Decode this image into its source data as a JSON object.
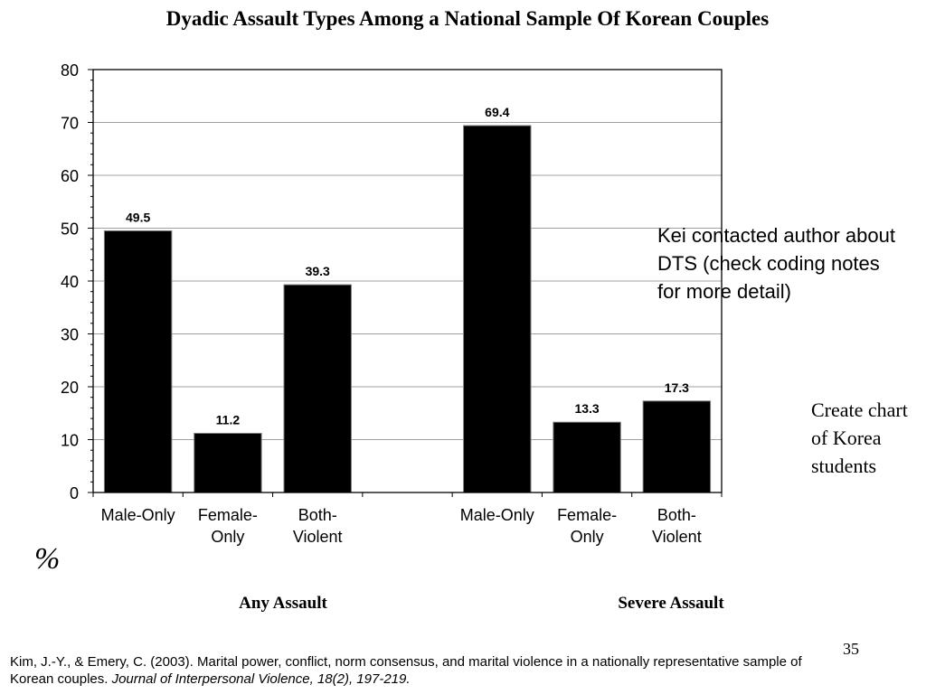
{
  "slide": {
    "annotation": "Kei contacted author about DTS (check coding notes for more detail)",
    "side_note": "Create chart of Korea students",
    "percent_symbol": "%",
    "page_number": "35",
    "citation_text": "Kim, J.-Y., & Emery, C. (2003). Marital power, conflict, norm consensus, and marital violence in a nationally representative sample of Korean couples.",
    "citation_journal": "Journal of Interpersonal Violence, 18(2), 197-219."
  },
  "chart_data": {
    "type": "bar",
    "title": "Dyadic Assault Types Among a National Sample Of Korean Couples",
    "groups": [
      "Any Assault",
      "Severe Assault"
    ],
    "categories": [
      [
        "Male-Only",
        ""
      ],
      [
        "Female-",
        "Only"
      ],
      [
        "Both-",
        "Violent"
      ],
      [
        "",
        ""
      ],
      [
        "Male-Only",
        ""
      ],
      [
        "Female-",
        "Only"
      ],
      [
        "Both-",
        "Violent"
      ]
    ],
    "values": [
      49.5,
      11.2,
      39.3,
      null,
      69.4,
      13.3,
      17.3
    ],
    "data_labels": [
      "49.5",
      "11.2",
      "39.3",
      "",
      "69.4",
      "13.3",
      "17.3"
    ],
    "ylim": [
      0,
      80
    ],
    "yticks": [
      0,
      10,
      20,
      30,
      40,
      50,
      60,
      70,
      80
    ],
    "grid": true,
    "bar_color": "#000000",
    "grid_color": "#a0a0a0"
  }
}
